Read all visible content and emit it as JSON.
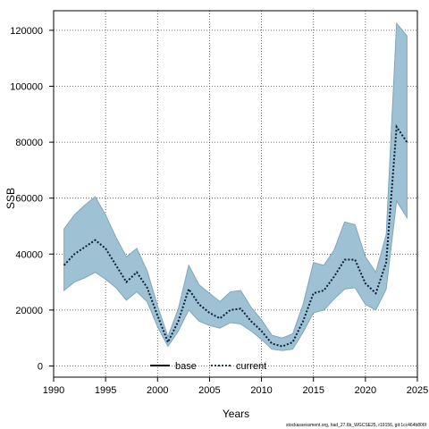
{
  "chart_data": {
    "type": "area",
    "xlabel": "Years",
    "ylabel": "SSB",
    "xlim": [
      1990,
      2025
    ],
    "ylim": [
      -4000,
      127000
    ],
    "x_ticks": [
      1990,
      1995,
      2000,
      2005,
      2010,
      2015,
      2020,
      2025
    ],
    "y_ticks": [
      0,
      20000,
      40000,
      60000,
      80000,
      100000,
      120000
    ],
    "grid": true,
    "legend_position": "bottom-center",
    "legend": [
      {
        "label": "base",
        "style": "solid",
        "color": "#000000"
      },
      {
        "label": "current",
        "style": "dotted",
        "color": "#1a3a5a"
      }
    ],
    "band_color": "#9fc1d4",
    "band_edge_color": "#7fa6bc",
    "years": [
      1991,
      1992,
      1993,
      1994,
      1995,
      1996,
      1997,
      1998,
      1999,
      2000,
      2001,
      2002,
      2003,
      2004,
      2005,
      2006,
      2007,
      2008,
      2009,
      2010,
      2011,
      2012,
      2013,
      2014,
      2015,
      2016,
      2017,
      2018,
      2019,
      2020,
      2021,
      2022,
      2023,
      2024
    ],
    "series": [
      {
        "name": "current",
        "values": [
          36000,
          40000,
          42500,
          45000,
          42000,
          36000,
          30000,
          33500,
          28000,
          18000,
          8500,
          16000,
          27500,
          22000,
          19000,
          17000,
          20000,
          20500,
          16000,
          12500,
          8000,
          7000,
          8500,
          16000,
          26000,
          27000,
          32000,
          38000,
          38000,
          29500,
          26000,
          37000,
          85500,
          80000
        ],
        "lower": [
          27000,
          30000,
          31500,
          33500,
          31000,
          28000,
          23500,
          26500,
          23000,
          14000,
          7000,
          12500,
          20000,
          16000,
          14500,
          13500,
          15500,
          15000,
          12500,
          9500,
          6000,
          5500,
          6000,
          12000,
          19000,
          20000,
          24000,
          27500,
          28000,
          22000,
          20000,
          27500,
          59000,
          53000
        ],
        "upper": [
          49000,
          54000,
          57500,
          60500,
          54000,
          46000,
          39000,
          42000,
          34000,
          21500,
          10500,
          20500,
          36000,
          29000,
          26000,
          23000,
          26500,
          27000,
          21000,
          16500,
          11000,
          10000,
          11500,
          22000,
          37000,
          36000,
          41500,
          51500,
          50500,
          39000,
          33500,
          47000,
          122500,
          118000
        ]
      }
    ],
    "footer": "stockassessment.org, had_27.6b_WGCSE25, r19156, git:1cc464b806f"
  }
}
